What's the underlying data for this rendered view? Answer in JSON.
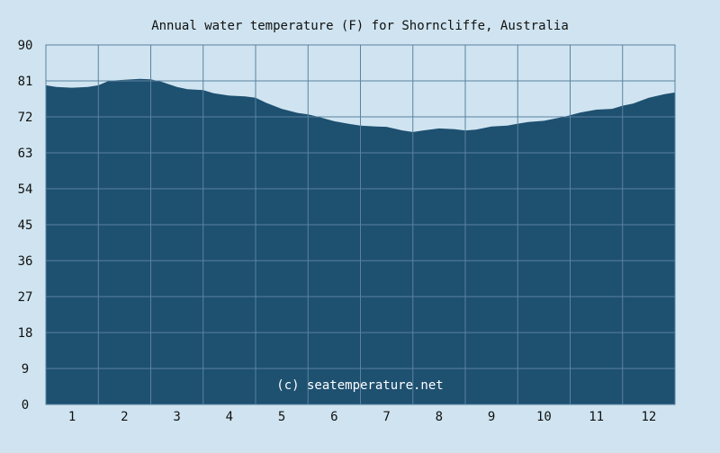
{
  "chart_data": {
    "type": "area",
    "title": "Annual water temperature (F) for Shorncliffe, Australia",
    "watermark": "(c) seatemperature.net",
    "xlabel": "",
    "ylabel": "",
    "x_ticks": [
      "1",
      "2",
      "3",
      "4",
      "5",
      "6",
      "7",
      "8",
      "9",
      "10",
      "11",
      "12"
    ],
    "y_ticks": [
      "0",
      "9",
      "18",
      "27",
      "36",
      "45",
      "54",
      "63",
      "72",
      "81",
      "90"
    ],
    "xlim": [
      0.5,
      12.5
    ],
    "ylim": [
      0,
      90
    ],
    "grid": true,
    "x": [
      0.5,
      0.7,
      1.0,
      1.3,
      1.5,
      1.7,
      2.0,
      2.3,
      2.5,
      2.7,
      3.0,
      3.2,
      3.5,
      3.7,
      4.0,
      4.3,
      4.5,
      4.7,
      5.0,
      5.3,
      5.5,
      5.7,
      6.0,
      6.3,
      6.5,
      6.8,
      7.0,
      7.3,
      7.5,
      7.7,
      8.0,
      8.3,
      8.5,
      8.7,
      9.0,
      9.3,
      9.5,
      9.7,
      10.0,
      10.3,
      10.5,
      10.7,
      11.0,
      11.3,
      11.5,
      11.7,
      12.0,
      12.3,
      12.5
    ],
    "y": [
      79.9,
      79.5,
      79.3,
      79.5,
      79.9,
      81.0,
      81.3,
      81.5,
      81.4,
      80.8,
      79.5,
      78.9,
      78.7,
      77.9,
      77.3,
      77.1,
      76.8,
      75.5,
      74.0,
      73.0,
      72.6,
      72.0,
      70.9,
      70.2,
      69.8,
      69.6,
      69.5,
      68.6,
      68.2,
      68.6,
      69.1,
      68.9,
      68.6,
      68.8,
      69.6,
      69.8,
      70.3,
      70.7,
      71.0,
      71.8,
      72.4,
      73.1,
      73.8,
      74.0,
      74.8,
      75.3,
      76.8,
      77.7,
      78.1
    ],
    "colors": {
      "background": "#cfe4f0",
      "fill": "#1e5070",
      "grid": "#5a82a0",
      "text": "#111111",
      "watermark": "#ffffff"
    }
  }
}
